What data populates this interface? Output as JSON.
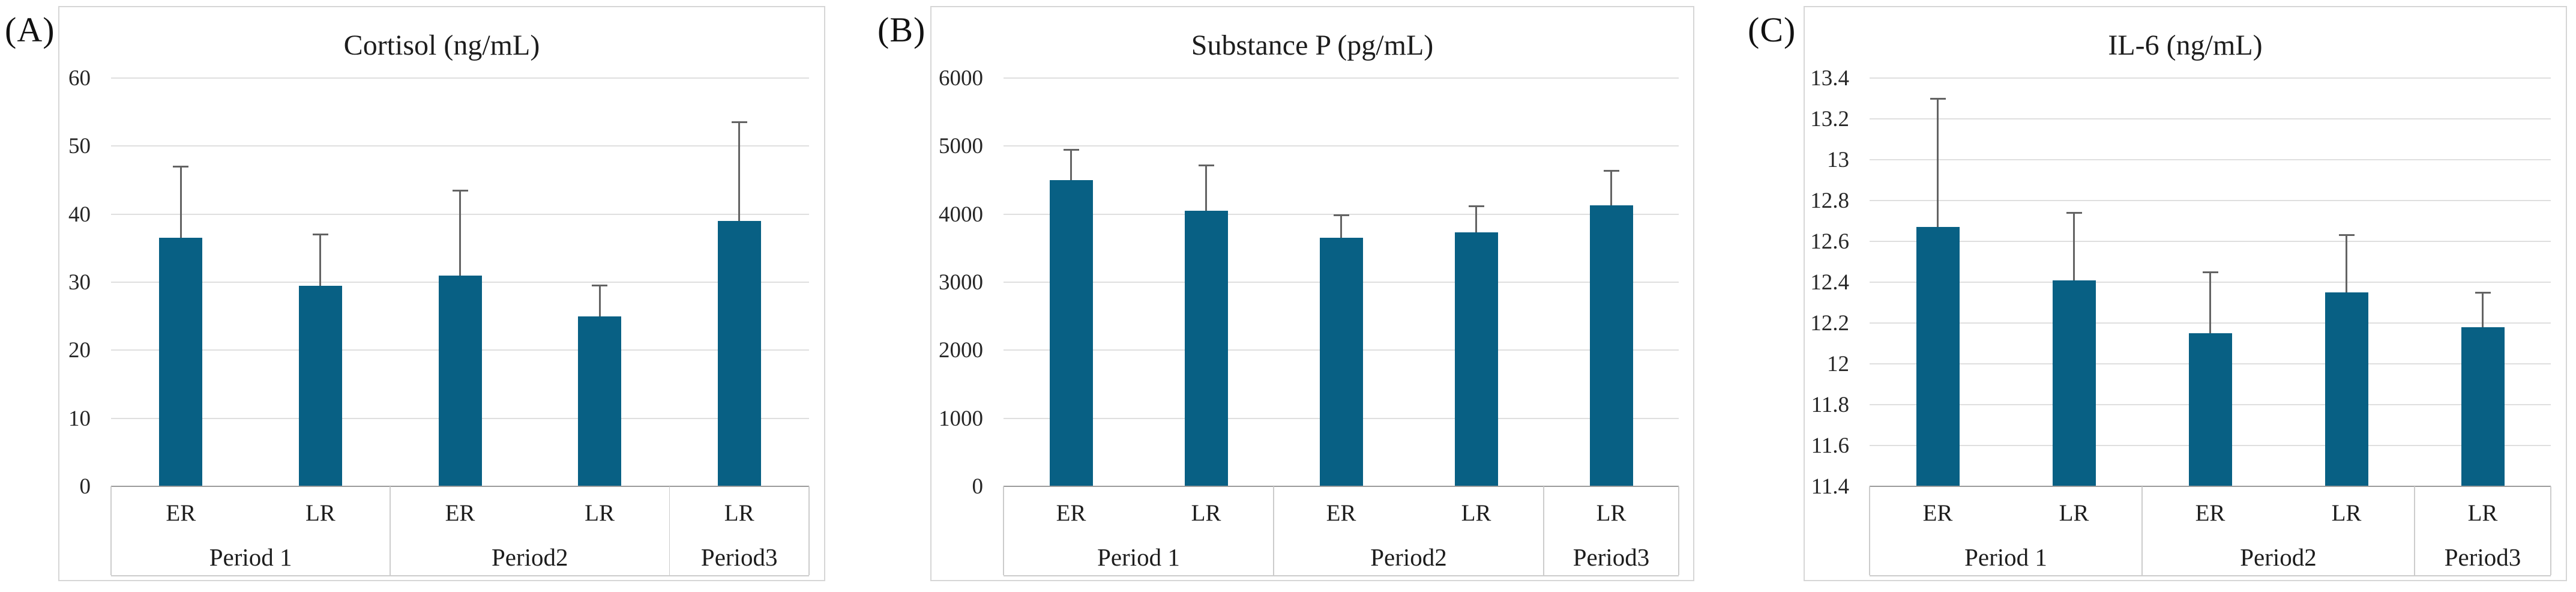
{
  "figure": {
    "background": "#ffffff",
    "bar_color": "#086084",
    "error_bar_color": "#636363",
    "grid_color": "#dfdfdf",
    "axis_line_color": "#9b9b9b",
    "table_line_color": "#cccccc",
    "panel_border_color": "#d6d6d6",
    "text_color": "#1d1d1d"
  },
  "chart_data": [
    {
      "type": "bar",
      "panel_label": "(A)",
      "title": "Cortisol (ng/mL)",
      "categories": [
        "ER",
        "LR",
        "ER",
        "LR",
        "LR"
      ],
      "groups": [
        {
          "label": "Period 1",
          "span": 2
        },
        {
          "label": "Period2",
          "span": 2
        },
        {
          "label": "Period3",
          "span": 1
        }
      ],
      "values": [
        36.5,
        29.5,
        31,
        25,
        39
      ],
      "errors_plus": [
        10.5,
        7.5,
        12.5,
        4.5,
        14.5
      ],
      "ylim": [
        0,
        60
      ],
      "ytick_step": 10,
      "grid": true,
      "legend_position": "none"
    },
    {
      "type": "bar",
      "panel_label": "(B)",
      "title": "Substance P (pg/mL)",
      "categories": [
        "ER",
        "LR",
        "ER",
        "LR",
        "LR"
      ],
      "groups": [
        {
          "label": "Period 1",
          "span": 2
        },
        {
          "label": "Period2",
          "span": 2
        },
        {
          "label": "Period3",
          "span": 1
        }
      ],
      "values": [
        4500,
        4050,
        3650,
        3730,
        4130
      ],
      "errors_plus": [
        450,
        670,
        330,
        390,
        510
      ],
      "ylim": [
        0,
        6000
      ],
      "ytick_step": 1000,
      "grid": true,
      "legend_position": "none"
    },
    {
      "type": "bar",
      "panel_label": "(C)",
      "title": "IL-6 (ng/mL)",
      "categories": [
        "ER",
        "LR",
        "ER",
        "LR",
        "LR"
      ],
      "groups": [
        {
          "label": "Period 1",
          "span": 2
        },
        {
          "label": "Period2",
          "span": 2
        },
        {
          "label": "Period3",
          "span": 1
        }
      ],
      "values": [
        12.67,
        12.41,
        12.15,
        12.35,
        12.18
      ],
      "errors_plus": [
        0.63,
        0.33,
        0.3,
        0.28,
        0.17
      ],
      "ylim": [
        11.4,
        13.4
      ],
      "ytick_step": 0.2,
      "grid": true,
      "legend_position": "none"
    }
  ]
}
